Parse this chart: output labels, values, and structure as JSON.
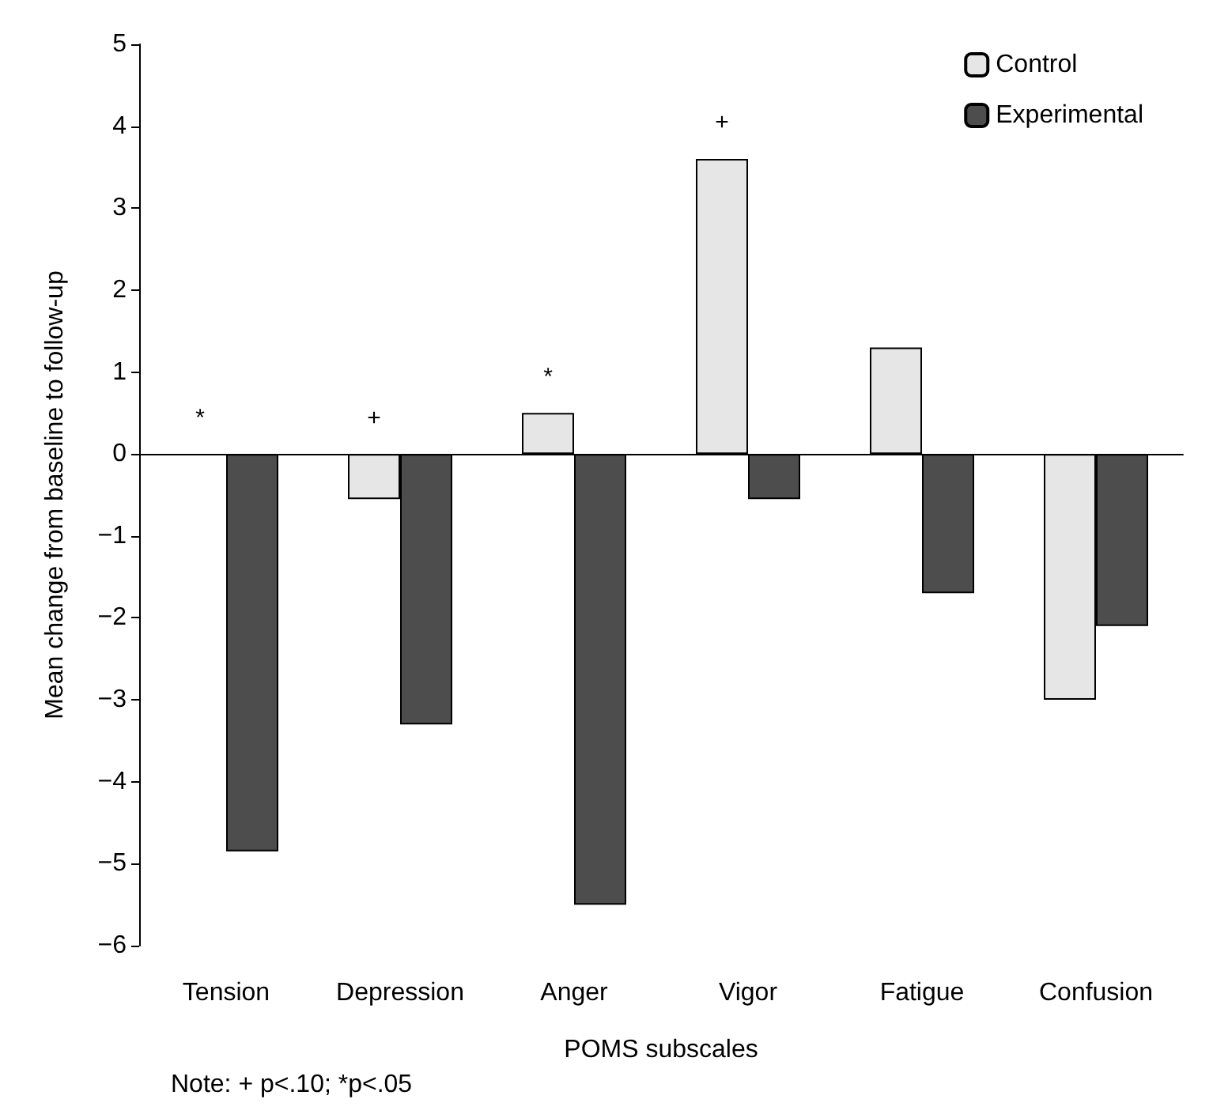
{
  "chart_data": {
    "type": "bar",
    "xlabel": "POMS subscales",
    "ylabel": "Mean change from baseline to follow-up",
    "categories": [
      "Tension",
      "Depression",
      "Anger",
      "Vigor",
      "Fatigue",
      "Confusion"
    ],
    "series": [
      {
        "name": "Control",
        "color": "#e6e6e6",
        "values": [
          null,
          -0.55,
          0.5,
          3.6,
          1.3,
          -3.0
        ]
      },
      {
        "name": "Experimental",
        "color": "#4d4d4d",
        "values": [
          -4.85,
          -3.3,
          -5.5,
          -0.55,
          -1.7,
          -2.1
        ]
      }
    ],
    "ylim": [
      -6,
      5
    ],
    "yticks": [
      -6,
      -5,
      -4,
      -3,
      -2,
      -1,
      0,
      1,
      2,
      3,
      4,
      5
    ],
    "legend": "top right",
    "annotations": [
      "*",
      "+",
      "*",
      "+",
      "Note: + p<.10; *p<.05"
    ]
  }
}
